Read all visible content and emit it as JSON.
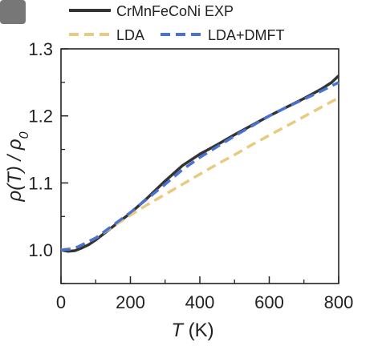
{
  "chart_data": {
    "type": "line",
    "title": "",
    "xlabel": {
      "symbol": "T",
      "unit": "(K)"
    },
    "ylabel": {
      "text": "ρ(T) / ρ",
      "subscript": "0"
    },
    "xlim": [
      0,
      800
    ],
    "ylim": [
      0.95,
      1.3
    ],
    "xticks": [
      0,
      200,
      400,
      600,
      800
    ],
    "yticks": [
      1.0,
      1.1,
      1.2,
      1.3
    ],
    "xtick_labels": [
      "0",
      "200",
      "400",
      "600",
      "800"
    ],
    "ytick_labels": [
      "1.0",
      "1.1",
      "1.2",
      "1.3"
    ],
    "grid": false,
    "legend_position": "top",
    "series": [
      {
        "name": "CrMnFeCoNi EXP",
        "color": "#333333",
        "style": "solid",
        "x": [
          0,
          20,
          40,
          60,
          80,
          100,
          150,
          200,
          250,
          300,
          350,
          400,
          450,
          500,
          550,
          600,
          650,
          700,
          750,
          780,
          800
        ],
        "y": [
          1.0,
          0.998,
          0.999,
          1.003,
          1.008,
          1.015,
          1.035,
          1.055,
          1.078,
          1.103,
          1.126,
          1.143,
          1.157,
          1.172,
          1.186,
          1.2,
          1.213,
          1.226,
          1.24,
          1.25,
          1.26
        ]
      },
      {
        "name": "LDA",
        "color": "#E8CB80",
        "style": "dashed",
        "x": [
          0,
          50,
          100,
          150,
          200,
          250,
          300,
          350,
          400,
          450,
          500,
          550,
          600,
          650,
          700,
          750,
          800
        ],
        "y": [
          1.0,
          1.005,
          1.018,
          1.035,
          1.052,
          1.068,
          1.083,
          1.098,
          1.113,
          1.128,
          1.142,
          1.157,
          1.171,
          1.185,
          1.199,
          1.213,
          1.227
        ]
      },
      {
        "name": "LDA+DMFT",
        "color": "#4A72D1",
        "style": "dashed",
        "x": [
          0,
          25,
          50,
          100,
          150,
          200,
          250,
          300,
          350,
          400,
          450,
          500,
          550,
          600,
          650,
          700,
          750,
          800
        ],
        "y": [
          1.0,
          1.001,
          1.005,
          1.018,
          1.037,
          1.056,
          1.077,
          1.098,
          1.12,
          1.138,
          1.154,
          1.17,
          1.185,
          1.2,
          1.213,
          1.225,
          1.237,
          1.25
        ]
      }
    ]
  }
}
